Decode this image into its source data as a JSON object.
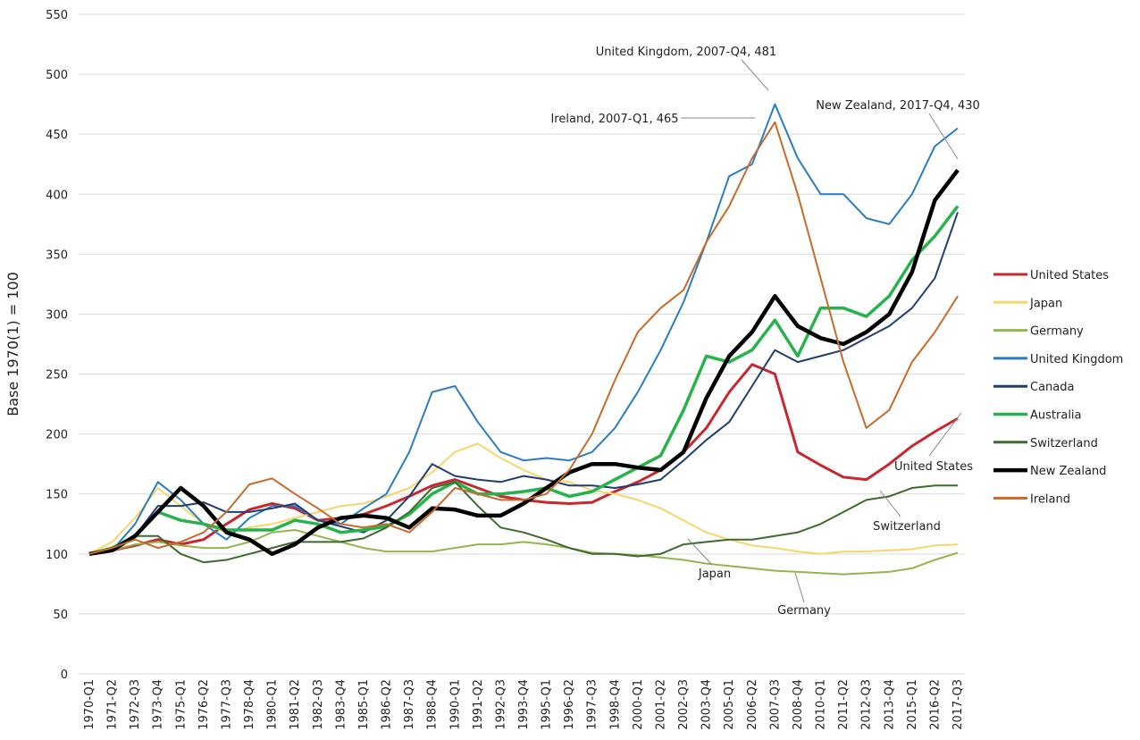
{
  "chart_data": {
    "type": "line",
    "y_label": "Base 1970(1) = 100",
    "categories": [
      "1970-Q1",
      "1971-Q2",
      "1972-Q3",
      "1973-Q4",
      "1975-Q1",
      "1976-Q2",
      "1977-Q3",
      "1978-Q4",
      "1980-Q1",
      "1981-Q2",
      "1982-Q3",
      "1983-Q4",
      "1985-Q1",
      "1986-Q2",
      "1987-Q3",
      "1988-Q4",
      "1990-Q1",
      "1991-Q2",
      "1992-Q3",
      "1993-Q4",
      "1995-Q1",
      "1996-Q2",
      "1997-Q3",
      "1998-Q4",
      "2000-Q1",
      "2001-Q2",
      "2002-Q3",
      "2003-Q4",
      "2005-Q1",
      "2006-Q2",
      "2007-Q3",
      "2008-Q4",
      "2010-Q1",
      "2011-Q2",
      "2012-Q3",
      "2013-Q4",
      "2015-Q1",
      "2016-Q2",
      "2017-Q3"
    ],
    "series": [
      {
        "name": "United States",
        "color": "#c8282d",
        "width": 3,
        "values": [
          100,
          103,
          107,
          112,
          108,
          112,
          125,
          137,
          142,
          138,
          128,
          130,
          133,
          140,
          148,
          157,
          162,
          155,
          148,
          145,
          143,
          142,
          143,
          152,
          160,
          170,
          185,
          205,
          235,
          258,
          250,
          185,
          174,
          164,
          162,
          175,
          190,
          202,
          213
        ]
      },
      {
        "name": "Japan",
        "color": "#f7d56b",
        "width": 2,
        "values": [
          100,
          110,
          130,
          155,
          140,
          125,
          118,
          122,
          125,
          130,
          135,
          140,
          142,
          148,
          155,
          168,
          185,
          192,
          180,
          170,
          162,
          160,
          153,
          150,
          145,
          138,
          128,
          118,
          112,
          107,
          105,
          102,
          100,
          102,
          102,
          103,
          104,
          107,
          108
        ]
      },
      {
        "name": "Germany",
        "color": "#93b64e",
        "width": 2,
        "values": [
          100,
          103,
          108,
          110,
          107,
          105,
          105,
          110,
          118,
          120,
          115,
          110,
          105,
          102,
          102,
          102,
          105,
          108,
          108,
          110,
          108,
          105,
          101,
          100,
          99,
          97,
          95,
          92,
          90,
          88,
          86,
          85,
          84,
          83,
          84,
          85,
          88,
          95,
          101
        ]
      },
      {
        "name": "United Kingdom",
        "color": "#2a7cc2",
        "width": 2,
        "values": [
          100,
          103,
          125,
          160,
          145,
          125,
          112,
          130,
          140,
          140,
          128,
          125,
          138,
          150,
          185,
          235,
          240,
          210,
          185,
          178,
          180,
          178,
          185,
          205,
          235,
          270,
          310,
          360,
          415,
          425,
          475,
          430,
          400,
          400,
          380,
          375,
          400,
          440,
          455
        ]
      },
      {
        "name": "Canada",
        "color": "#213e72",
        "width": 2,
        "values": [
          100,
          103,
          115,
          140,
          140,
          143,
          135,
          135,
          138,
          142,
          128,
          123,
          118,
          128,
          148,
          175,
          165,
          162,
          160,
          165,
          162,
          157,
          157,
          155,
          158,
          162,
          178,
          195,
          210,
          240,
          270,
          260,
          265,
          270,
          280,
          290,
          305,
          330,
          385
        ]
      },
      {
        "name": "Australia",
        "color": "#27b34b",
        "width": 3.5,
        "values": [
          100,
          105,
          115,
          135,
          128,
          125,
          120,
          120,
          120,
          128,
          125,
          118,
          120,
          123,
          133,
          150,
          160,
          150,
          150,
          152,
          155,
          148,
          152,
          162,
          172,
          182,
          220,
          265,
          260,
          270,
          295,
          265,
          305,
          305,
          298,
          315,
          345,
          365,
          390
        ]
      },
      {
        "name": "Switzerland",
        "color": "#3d6a2e",
        "width": 2,
        "values": [
          100,
          105,
          115,
          115,
          100,
          93,
          95,
          100,
          105,
          110,
          110,
          110,
          113,
          122,
          135,
          155,
          160,
          140,
          122,
          118,
          112,
          105,
          100,
          100,
          98,
          100,
          108,
          110,
          112,
          112,
          115,
          118,
          125,
          135,
          145,
          148,
          155,
          157,
          157
        ]
      },
      {
        "name": "New Zealand",
        "color": "#000000",
        "width": 4.5,
        "values": [
          100,
          103,
          115,
          135,
          155,
          140,
          118,
          112,
          100,
          108,
          122,
          130,
          132,
          130,
          122,
          138,
          137,
          132,
          132,
          142,
          155,
          168,
          175,
          175,
          172,
          170,
          185,
          230,
          265,
          285,
          315,
          290,
          280,
          275,
          285,
          300,
          335,
          395,
          420
        ]
      },
      {
        "name": "Ireland",
        "color": "#c86a2b",
        "width": 2,
        "values": [
          100,
          105,
          112,
          105,
          110,
          118,
          135,
          158,
          163,
          150,
          138,
          125,
          122,
          125,
          118,
          135,
          155,
          150,
          145,
          145,
          150,
          170,
          200,
          245,
          285,
          305,
          320,
          360,
          390,
          430,
          460,
          400,
          330,
          260,
          205,
          220,
          260,
          285,
          315
        ]
      }
    ],
    "ylim": [
      0,
      550
    ],
    "yticks": [
      0,
      50,
      100,
      150,
      200,
      250,
      300,
      350,
      400,
      450,
      500,
      550
    ],
    "grid": true,
    "legend": "right",
    "annotations": [
      "United Kingdom, 2007-Q4, 481",
      "Ireland, 2007-Q1, 465",
      "New Zealand, 2017-Q4, 430",
      "United States",
      "Switzerland",
      "Japan",
      "Germany"
    ]
  }
}
